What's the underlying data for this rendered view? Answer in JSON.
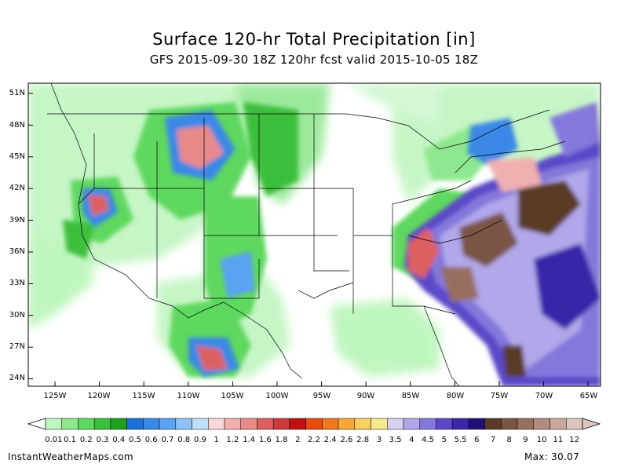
{
  "title": "Surface 120-hr Total Precipitation [in]",
  "subtitle": "GFS 2015-09-30 18Z 120hr fcst valid 2015-10-05 18Z",
  "lat_labels": [
    "51N",
    "48N",
    "45N",
    "42N",
    "39N",
    "36N",
    "33N",
    "30N",
    "27N",
    "24N"
  ],
  "lon_labels": [
    "125W",
    "120W",
    "115W",
    "110W",
    "105W",
    "100W",
    "95W",
    "90W",
    "85W",
    "80W",
    "75W",
    "70W",
    "65W"
  ],
  "colorbar": {
    "labels": [
      "0.01",
      "0.1",
      "0.2",
      "0.3",
      "0.4",
      "0.5",
      "0.6",
      "0.7",
      "0.8",
      "0.9",
      "1",
      "1.2",
      "1.4",
      "1.6",
      "1.8",
      "2",
      "2.2",
      "2.4",
      "2.6",
      "2.8",
      "3",
      "3.5",
      "4",
      "4.5",
      "5",
      "5.5",
      "6",
      "7",
      "8",
      "9",
      "10",
      "11",
      "12"
    ],
    "colors": [
      "#bff5bf",
      "#8fe88f",
      "#5fd85f",
      "#3cbf3c",
      "#1fa01f",
      "#1c6fd6",
      "#3a88e6",
      "#5aa3f0",
      "#8cc2f5",
      "#bfe0f8",
      "#f8d8d8",
      "#f0b0b0",
      "#e88a8a",
      "#dd6060",
      "#cc3a3a",
      "#c01010",
      "#e84a10",
      "#f07820",
      "#f8a838",
      "#f8d060",
      "#f8e890",
      "#d8d0f0",
      "#b0a8ea",
      "#8478dc",
      "#5a48c8",
      "#3828a8",
      "#201078",
      "#5a3a28",
      "#7a5444",
      "#986e60",
      "#b28c80",
      "#c8a89e",
      "#dcc6bc"
    ],
    "max_label": "Max: 30.07"
  },
  "footer": {
    "site": "InstantWeatherMaps.com"
  }
}
